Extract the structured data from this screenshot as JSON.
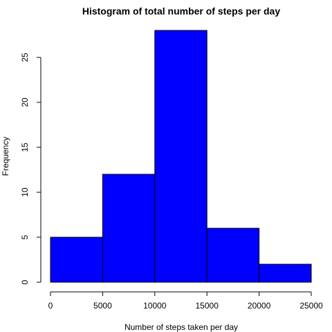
{
  "chart_data": {
    "type": "bar",
    "title": "Histogram of total number of steps per day",
    "xlabel": "Number of steps taken per day",
    "ylabel": "Frequency",
    "bins": [
      {
        "from": 0,
        "to": 5000,
        "value": 5
      },
      {
        "from": 5000,
        "to": 10000,
        "value": 12
      },
      {
        "from": 10000,
        "to": 15000,
        "value": 28
      },
      {
        "from": 15000,
        "to": 20000,
        "value": 6
      },
      {
        "from": 20000,
        "to": 25000,
        "value": 2
      }
    ],
    "xlim": [
      0,
      25000
    ],
    "ylim": [
      0,
      28
    ],
    "xticks": [
      0,
      5000,
      10000,
      15000,
      20000,
      25000
    ],
    "xtick_labels": [
      "0",
      "5000",
      "10000",
      "15000",
      "20000",
      "25000"
    ],
    "yticks": [
      0,
      5,
      10,
      15,
      20,
      25
    ],
    "ytick_labels": [
      "0",
      "5",
      "10",
      "15",
      "20",
      "25"
    ],
    "bar_color": "#0000ff",
    "grid": false,
    "legend": "none"
  }
}
